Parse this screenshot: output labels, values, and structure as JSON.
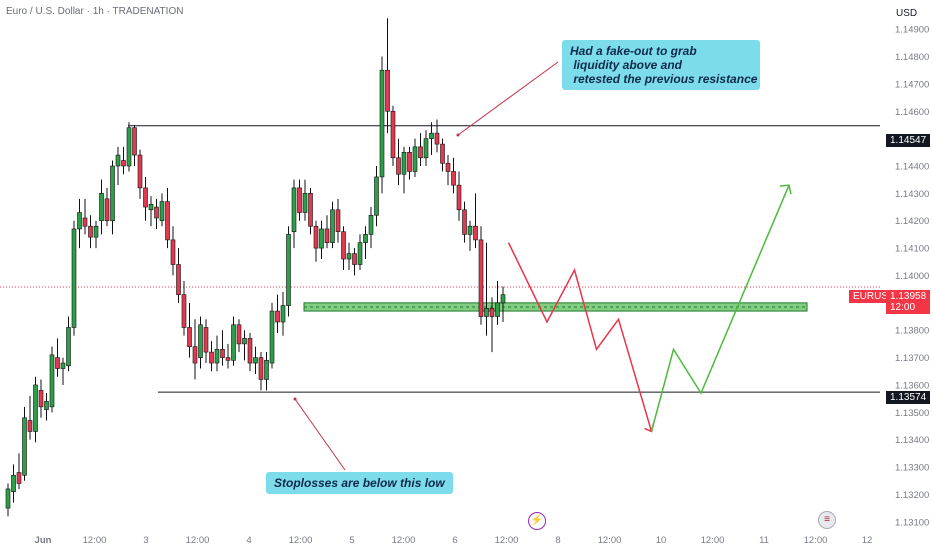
{
  "header": {
    "instrument": "Euro / U.S. Dollar · 1h · TRADENATION",
    "currency": "USD"
  },
  "callouts": {
    "top": [
      "Had a fake-out to grab",
      " liquidity above and",
      " retested the previous resistance"
    ],
    "bottom": "Stoplosses are below this low"
  },
  "colors": {
    "up": "#2e9e4a",
    "down": "#e03a50",
    "zone_fill": "#6cc46c",
    "zone_border": "#1f7a2f",
    "green_path": "#4cba3a",
    "red_path": "#e8344a",
    "callout_bg": "#7ddcec",
    "annotation_line": "#c0304a"
  },
  "chart_data": {
    "type": "candlestick",
    "symbol": "EURUSD",
    "current_price": "1.13958",
    "countdown": "12:00",
    "y_axis": {
      "range": [
        1.1307,
        1.1497
      ],
      "ticks": [
        "1.14900",
        "1.14800",
        "1.14700",
        "1.14600",
        "1.14500",
        "1.14400",
        "1.14300",
        "1.14200",
        "1.14100",
        "1.14000",
        "1.13900",
        "1.13800",
        "1.13700",
        "1.13600",
        "1.13500",
        "1.13400",
        "1.13300",
        "1.13200",
        "1.13100"
      ]
    },
    "x_axis": {
      "ticks": [
        "Jun",
        "12:00",
        "3",
        "12:00",
        "4",
        "12:00",
        "5",
        "12:00",
        "6",
        "12:00",
        "8",
        "12:00",
        "10",
        "12:00",
        "11",
        "12:00",
        "12"
      ],
      "bar_range": [
        0,
        100
      ]
    },
    "levels": [
      {
        "label": "1.14547",
        "value": 1.14547
      },
      {
        "label": "1.13574",
        "value": 1.13574
      }
    ],
    "demand_zone": {
      "low": 1.1387,
      "high": 1.139
    },
    "candles": [
      [
        1.1315,
        1.1324,
        1.1312,
        1.1322
      ],
      [
        1.1321,
        1.1331,
        1.1317,
        1.1327
      ],
      [
        1.1328,
        1.1335,
        1.1322,
        1.1324
      ],
      [
        1.1327,
        1.1352,
        1.1325,
        1.1348
      ],
      [
        1.1347,
        1.1356,
        1.134,
        1.1343
      ],
      [
        1.1343,
        1.1363,
        1.1339,
        1.136
      ],
      [
        1.1358,
        1.1362,
        1.1348,
        1.1352
      ],
      [
        1.1351,
        1.1357,
        1.1347,
        1.1354
      ],
      [
        1.1352,
        1.1374,
        1.135,
        1.1371
      ],
      [
        1.137,
        1.1377,
        1.1363,
        1.1366
      ],
      [
        1.1366,
        1.137,
        1.136,
        1.1368
      ],
      [
        1.1367,
        1.1385,
        1.1365,
        1.1381
      ],
      [
        1.1381,
        1.142,
        1.1378,
        1.1417
      ],
      [
        1.1417,
        1.1428,
        1.141,
        1.1423
      ],
      [
        1.1421,
        1.1428,
        1.1415,
        1.1418
      ],
      [
        1.1418,
        1.1422,
        1.141,
        1.1414
      ],
      [
        1.1414,
        1.142,
        1.141,
        1.1418
      ],
      [
        1.142,
        1.1435,
        1.1415,
        1.143
      ],
      [
        1.1428,
        1.1432,
        1.1418,
        1.142
      ],
      [
        1.142,
        1.1442,
        1.1415,
        1.144
      ],
      [
        1.144,
        1.1447,
        1.1433,
        1.1444
      ],
      [
        1.1442,
        1.1447,
        1.1437,
        1.144
      ],
      [
        1.144,
        1.1456,
        1.1438,
        1.1454
      ],
      [
        1.1454,
        1.1455,
        1.144,
        1.1444
      ],
      [
        1.1444,
        1.1446,
        1.1428,
        1.1432
      ],
      [
        1.1432,
        1.1436,
        1.142,
        1.1425
      ],
      [
        1.1424,
        1.1429,
        1.1418,
        1.1426
      ],
      [
        1.1425,
        1.1428,
        1.1417,
        1.1421
      ],
      [
        1.142,
        1.143,
        1.1418,
        1.1427
      ],
      [
        1.1427,
        1.1432,
        1.141,
        1.1413
      ],
      [
        1.1413,
        1.1418,
        1.14,
        1.1404
      ],
      [
        1.1404,
        1.141,
        1.139,
        1.1393
      ],
      [
        1.1393,
        1.1398,
        1.1378,
        1.1381
      ],
      [
        1.1381,
        1.139,
        1.137,
        1.1374
      ],
      [
        1.1374,
        1.1384,
        1.1362,
        1.1368
      ],
      [
        1.137,
        1.1385,
        1.1366,
        1.1382
      ],
      [
        1.1381,
        1.1384,
        1.1368,
        1.1372
      ],
      [
        1.1372,
        1.1376,
        1.1365,
        1.1368
      ],
      [
        1.1368,
        1.1378,
        1.1365,
        1.1373
      ],
      [
        1.1373,
        1.138,
        1.1367,
        1.137
      ],
      [
        1.137,
        1.1375,
        1.1366,
        1.1369
      ],
      [
        1.1369,
        1.1385,
        1.1367,
        1.1382
      ],
      [
        1.1382,
        1.1384,
        1.1372,
        1.1375
      ],
      [
        1.1375,
        1.138,
        1.1369,
        1.1377
      ],
      [
        1.1377,
        1.1379,
        1.1365,
        1.1368
      ],
      [
        1.1368,
        1.1374,
        1.1364,
        1.137
      ],
      [
        1.137,
        1.1372,
        1.1358,
        1.1362
      ],
      [
        1.1362,
        1.1372,
        1.1358,
        1.1369
      ],
      [
        1.1368,
        1.139,
        1.1366,
        1.1387
      ],
      [
        1.1387,
        1.1393,
        1.1379,
        1.1383
      ],
      [
        1.1383,
        1.1394,
        1.1378,
        1.1389
      ],
      [
        1.1389,
        1.1418,
        1.1385,
        1.1415
      ],
      [
        1.1416,
        1.1435,
        1.141,
        1.1432
      ],
      [
        1.1432,
        1.1435,
        1.142,
        1.1423
      ],
      [
        1.1423,
        1.1435,
        1.142,
        1.143
      ],
      [
        1.143,
        1.1432,
        1.1415,
        1.1418
      ],
      [
        1.1418,
        1.142,
        1.1405,
        1.141
      ],
      [
        1.141,
        1.142,
        1.1406,
        1.1417
      ],
      [
        1.1417,
        1.1422,
        1.141,
        1.1412
      ],
      [
        1.1412,
        1.1427,
        1.141,
        1.1424
      ],
      [
        1.1424,
        1.1428,
        1.1412,
        1.1416
      ],
      [
        1.1416,
        1.1418,
        1.1402,
        1.1406
      ],
      [
        1.1406,
        1.1412,
        1.1402,
        1.1408
      ],
      [
        1.1408,
        1.141,
        1.14,
        1.1404
      ],
      [
        1.1404,
        1.1415,
        1.1402,
        1.1412
      ],
      [
        1.1412,
        1.1418,
        1.1406,
        1.1415
      ],
      [
        1.1415,
        1.1425,
        1.141,
        1.1422
      ],
      [
        1.1422,
        1.144,
        1.1418,
        1.1436
      ],
      [
        1.1436,
        1.148,
        1.143,
        1.1475
      ],
      [
        1.1475,
        1.1494,
        1.1452,
        1.146
      ],
      [
        1.146,
        1.1462,
        1.144,
        1.1443
      ],
      [
        1.1443,
        1.145,
        1.1433,
        1.1437
      ],
      [
        1.1437,
        1.1447,
        1.143,
        1.1445
      ],
      [
        1.1445,
        1.1447,
        1.1435,
        1.1438
      ],
      [
        1.1438,
        1.145,
        1.1436,
        1.1447
      ],
      [
        1.1447,
        1.1452,
        1.144,
        1.1443
      ],
      [
        1.1443,
        1.1453,
        1.144,
        1.145
      ],
      [
        1.145,
        1.1456,
        1.1444,
        1.1452
      ],
      [
        1.1452,
        1.1457,
        1.1445,
        1.1448
      ],
      [
        1.1448,
        1.145,
        1.1438,
        1.1441
      ],
      [
        1.1441,
        1.1444,
        1.1433,
        1.1438
      ],
      [
        1.1438,
        1.1443,
        1.143,
        1.1433
      ],
      [
        1.1433,
        1.1438,
        1.142,
        1.1424
      ],
      [
        1.1424,
        1.1427,
        1.1412,
        1.1415
      ],
      [
        1.1415,
        1.142,
        1.1409,
        1.1418
      ],
      [
        1.1418,
        1.143,
        1.141,
        1.1413
      ],
      [
        1.1413,
        1.1418,
        1.1382,
        1.1385
      ],
      [
        1.1385,
        1.1412,
        1.1378,
        1.1388
      ],
      [
        1.1388,
        1.1392,
        1.1372,
        1.1385
      ],
      [
        1.1385,
        1.1398,
        1.1382,
        1.139
      ],
      [
        1.139,
        1.1396,
        1.1383,
        1.1393
      ]
    ],
    "projection_red": [
      [
        91,
        1.1412
      ],
      [
        98,
        1.1383
      ],
      [
        103,
        1.1402
      ],
      [
        107,
        1.1373
      ],
      [
        111,
        1.1384
      ],
      [
        117,
        1.1343
      ]
    ],
    "projection_green": [
      [
        117,
        1.1343
      ],
      [
        121,
        1.1373
      ],
      [
        126,
        1.1357
      ],
      [
        142,
        1.1433
      ]
    ]
  }
}
